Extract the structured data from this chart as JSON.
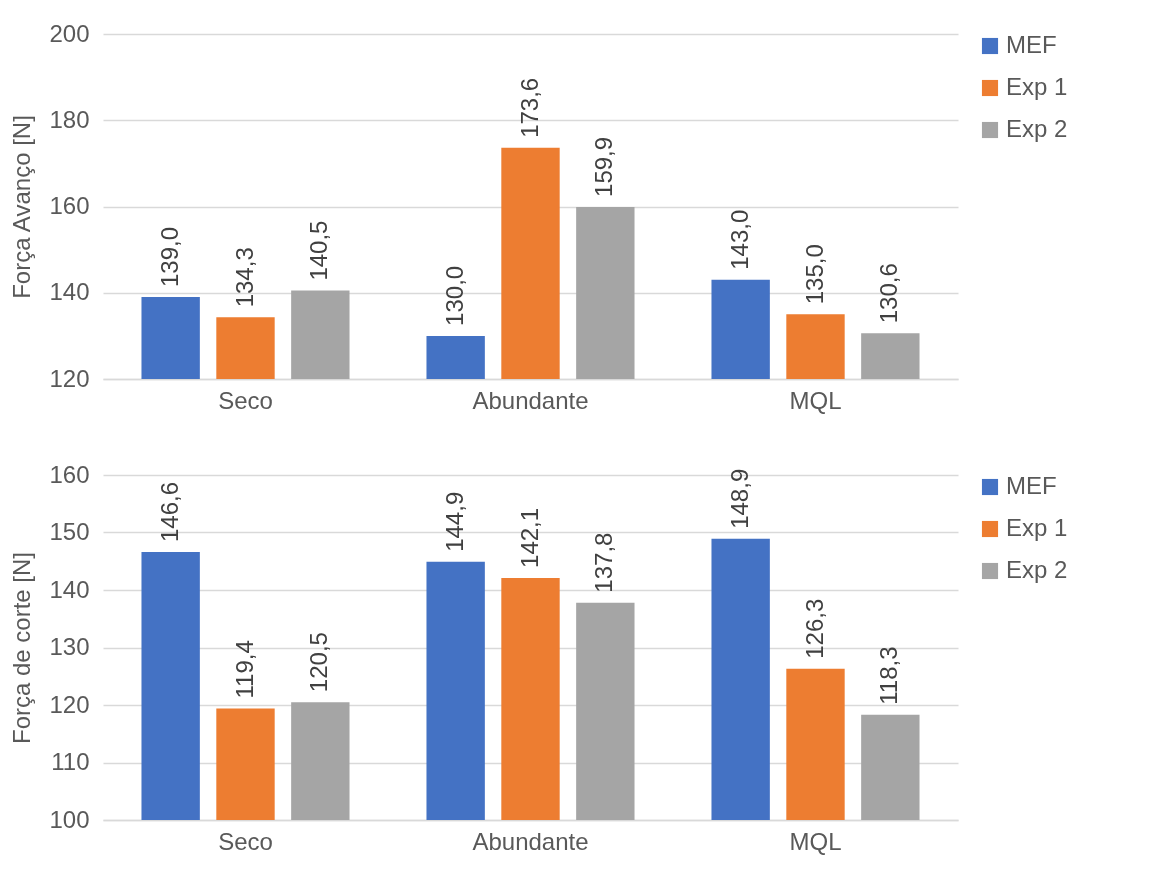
{
  "chart_data": [
    {
      "type": "bar",
      "ylabel": "Força Avanço [N]",
      "categories": [
        "Seco",
        "Abundante",
        "MQL"
      ],
      "ylim": [
        120,
        200
      ],
      "yticks": [
        120,
        140,
        160,
        180,
        200
      ],
      "grid": "y",
      "legend": "right",
      "series": [
        {
          "name": "MEF",
          "color": "#4472c4",
          "values": [
            139.0,
            130.0,
            143.0
          ],
          "value_labels": [
            "139,0",
            "130,0",
            "143,0"
          ]
        },
        {
          "name": "Exp 1",
          "color": "#ed7d31",
          "values": [
            134.3,
            173.6,
            135.0
          ],
          "value_labels": [
            "134,3",
            "173,6",
            "135,0"
          ]
        },
        {
          "name": "Exp 2",
          "color": "#a5a5a5",
          "values": [
            140.5,
            159.9,
            130.6
          ],
          "value_labels": [
            "140,5",
            "159,9",
            "130,6"
          ]
        }
      ]
    },
    {
      "type": "bar",
      "ylabel": "Força de corte [N]",
      "categories": [
        "Seco",
        "Abundante",
        "MQL"
      ],
      "ylim": [
        100,
        160
      ],
      "yticks": [
        100,
        110,
        120,
        130,
        140,
        150,
        160
      ],
      "grid": "y",
      "legend": "right",
      "series": [
        {
          "name": "MEF",
          "color": "#4472c4",
          "values": [
            146.6,
            144.9,
            148.9
          ],
          "value_labels": [
            "146,6",
            "144,9",
            "148,9"
          ]
        },
        {
          "name": "Exp 1",
          "color": "#ed7d31",
          "values": [
            119.4,
            142.1,
            126.3
          ],
          "value_labels": [
            "119,4",
            "142,1",
            "126,3"
          ]
        },
        {
          "name": "Exp 2",
          "color": "#a5a5a5",
          "values": [
            120.5,
            137.8,
            118.3
          ],
          "value_labels": [
            "120,5",
            "137,8",
            "118,3"
          ]
        }
      ]
    }
  ]
}
